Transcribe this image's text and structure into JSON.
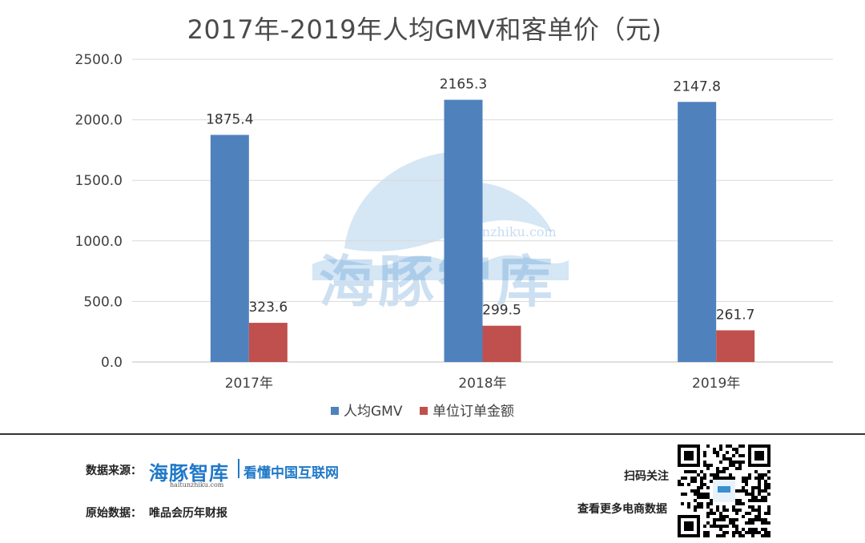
{
  "chart_data": {
    "type": "bar",
    "title": "2017年-2019年人均GMV和客单价（元)",
    "categories": [
      "2017年",
      "2018年",
      "2019年"
    ],
    "series": [
      {
        "name": "人均GMV",
        "values": [
          1875.4,
          2165.3,
          2147.8
        ],
        "color": "#4f81bd"
      },
      {
        "name": "单位订单金额",
        "values": [
          323.6,
          299.5,
          261.7
        ],
        "color": "#c0504d"
      }
    ],
    "data_labels": [
      "1875.4",
      "2165.3",
      "2147.8",
      "323.6",
      "299.5",
      "261.7"
    ],
    "y_ticks": [
      "0.0",
      "500.0",
      "1000.0",
      "1500.0",
      "2000.0",
      "2500.0"
    ],
    "ylim": [
      0,
      2500
    ],
    "grid": true,
    "legend_position": "bottom"
  },
  "watermark": {
    "text": "海豚智库",
    "url": "haitunzhiku.com"
  },
  "footer": {
    "source_label": "数据来源：",
    "brand_name": "海豚智库",
    "brand_slogan": "看懂中国互联网",
    "brand_url": "haitunzhiku.com",
    "original_label": "原始数据：",
    "original_value": "唯品会历年财报",
    "scan_label": "扫码关注",
    "more_label": "查看更多电商数据"
  }
}
